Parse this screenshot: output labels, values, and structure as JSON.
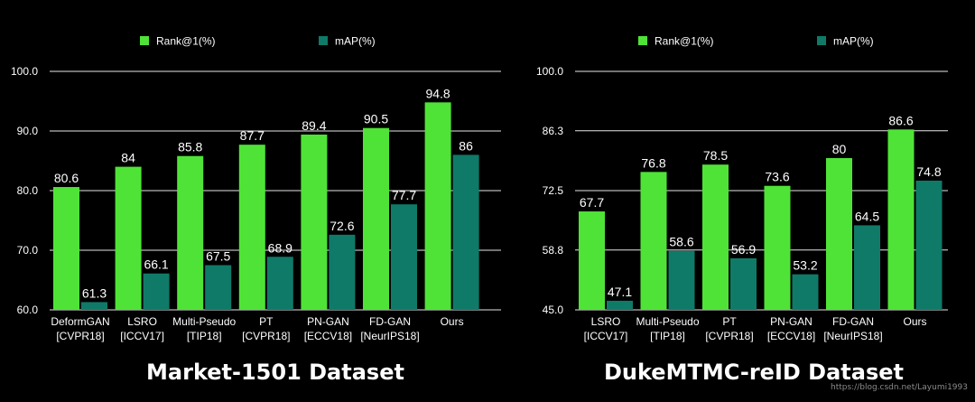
{
  "colors": {
    "background": "#000000",
    "rank1": "#4fe337",
    "map": "#0f7a68",
    "grid": "#e6e6e6",
    "text": "#ffffff"
  },
  "watermark": "https://blog.csdn.net/Layumi1993",
  "chart_data": [
    {
      "type": "bar",
      "title": "Market-1501 Dataset",
      "categories": [
        "DeformGAN\n[CVPR18]",
        "LSRO\n[ICCV17]",
        "Multi-Pseudo\n[TIP18]",
        "PT\n[CVPR18]",
        "PN-GAN\n[ECCV18]",
        "FD-GAN\n[NeurIPS18]",
        "Ours"
      ],
      "series": [
        {
          "name": "Rank@1(%)",
          "values": [
            80.6,
            84,
            85.8,
            87.7,
            89.4,
            90.5,
            94.8
          ],
          "labels": [
            "80.6",
            "84",
            "85.8",
            "87.7",
            "89.4",
            "90.5",
            "94.8"
          ]
        },
        {
          "name": "mAP(%)",
          "values": [
            61.3,
            66.1,
            67.5,
            68.9,
            72.6,
            77.7,
            86
          ],
          "labels": [
            "61.3",
            "66.1",
            "67.5",
            "68.9",
            "72.6",
            "77.7",
            "86"
          ]
        }
      ],
      "ylim": [
        60,
        100
      ],
      "yticks": [
        60,
        70,
        80,
        90,
        100
      ],
      "ytick_labels": [
        "60.0",
        "70.0",
        "80.0",
        "90.0",
        "100.0"
      ],
      "grid": true,
      "legend": "top"
    },
    {
      "type": "bar",
      "title": "DukeMTMC-reID Dataset",
      "categories": [
        "LSRO\n[ICCV17]",
        "Multi-Pseudo\n[TIP18]",
        "PT\n[CVPR18]",
        "PN-GAN\n[ECCV18]",
        "FD-GAN\n[NeurIPS18]",
        "Ours"
      ],
      "series": [
        {
          "name": "Rank@1(%)",
          "values": [
            67.7,
            76.8,
            78.5,
            73.6,
            80,
            86.6
          ],
          "labels": [
            "67.7",
            "76.8",
            "78.5",
            "73.6",
            "80",
            "86.6"
          ]
        },
        {
          "name": "mAP(%)",
          "values": [
            47.1,
            58.6,
            56.9,
            53.2,
            64.5,
            74.8
          ],
          "labels": [
            "47.1",
            "58.6",
            "56.9",
            "53.2",
            "64.5",
            "74.8"
          ]
        }
      ],
      "ylim": [
        45,
        100
      ],
      "yticks": [
        45,
        58.8,
        72.5,
        86.3,
        100
      ],
      "ytick_labels": [
        "45.0",
        "58.8",
        "72.5",
        "86.3",
        "100.0"
      ],
      "grid": true,
      "legend": "top"
    }
  ]
}
